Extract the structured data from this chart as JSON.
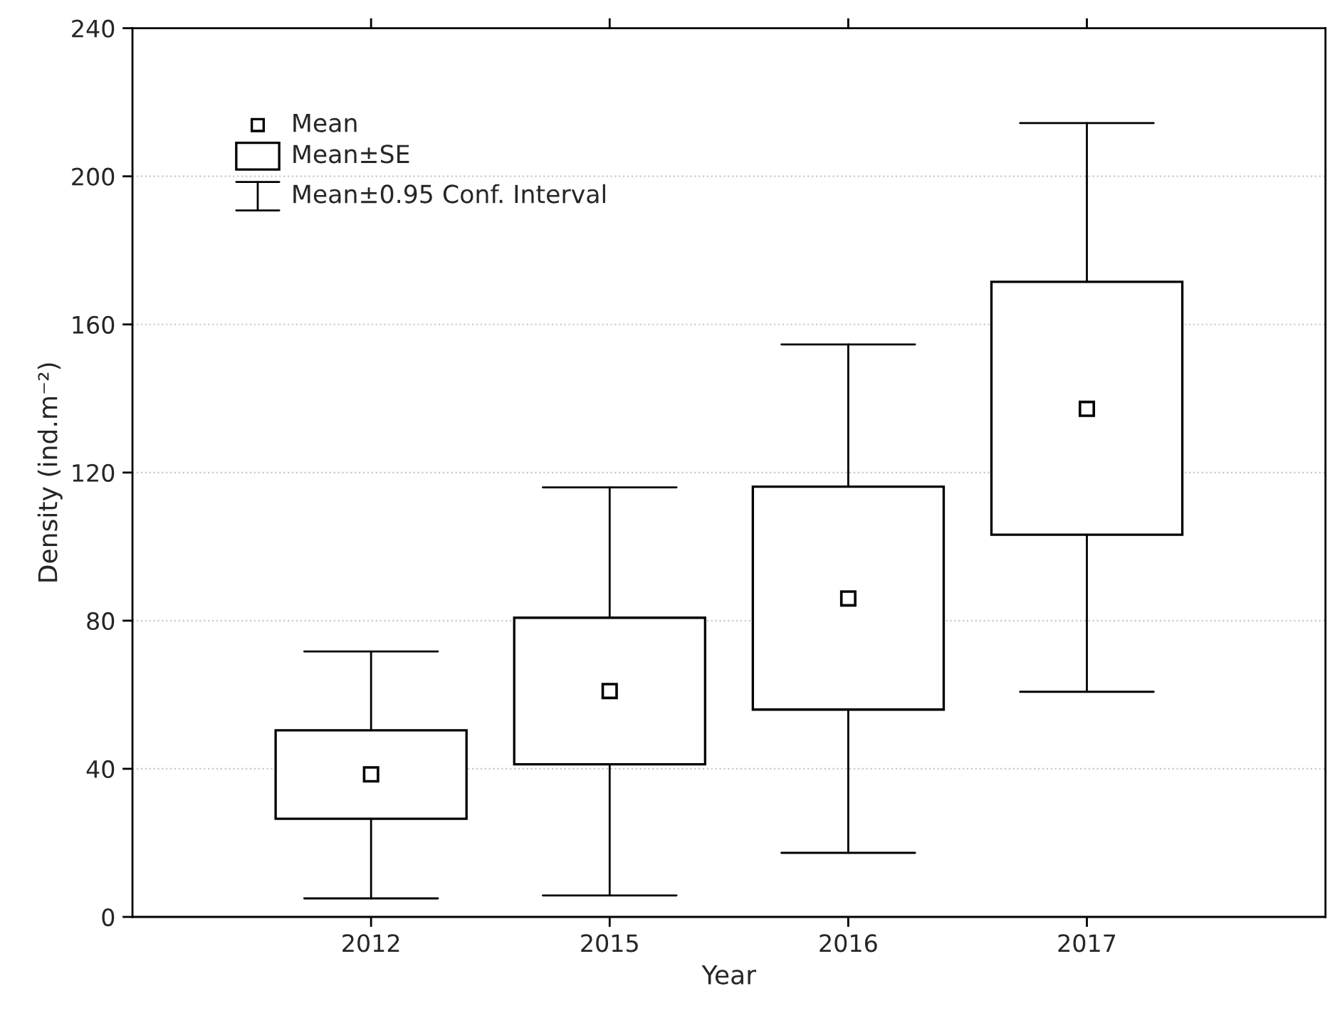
{
  "chart_data": {
    "type": "box",
    "xlabel": "Year",
    "ylabel": "Density (ind.m⁻²)",
    "categories": [
      "2012",
      "2015",
      "2016",
      "2017"
    ],
    "ylim": [
      0,
      240
    ],
    "yticks": [
      0,
      40,
      80,
      120,
      160,
      200,
      240
    ],
    "grid": "y",
    "marker": "square",
    "annotations": [
      "Mean",
      "Mean±SE",
      "Mean±0.95 Conf. Interval"
    ],
    "boxes": [
      {
        "low": 5,
        "q1": 26.5,
        "q3": 50.4,
        "high": 71.7,
        "mean": 38.5
      },
      {
        "low": 5.8,
        "q1": 41.2,
        "q3": 80.8,
        "high": 116,
        "mean": 61
      },
      {
        "low": 17.3,
        "q1": 56,
        "q3": 116.2,
        "high": 154.6,
        "mean": 86
      },
      {
        "low": 60.8,
        "q1": 103.2,
        "q3": 171.5,
        "high": 214.4,
        "mean": 137.2
      }
    ]
  }
}
